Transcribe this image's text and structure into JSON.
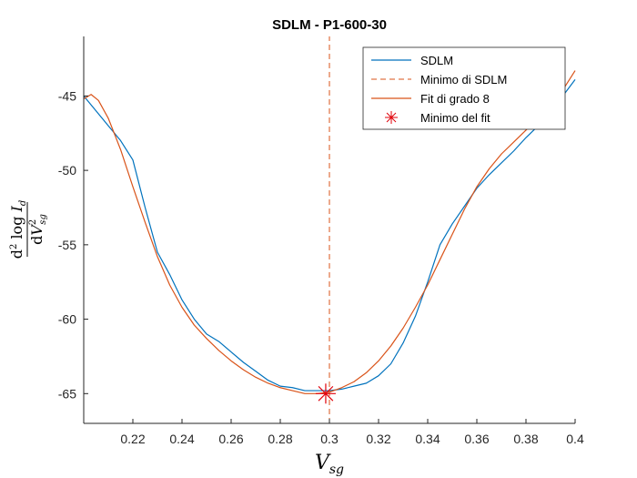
{
  "chart_data": {
    "type": "line",
    "title": "SDLM - P1-600-30",
    "xlabel": {
      "base": "V",
      "sub": "sg"
    },
    "ylabel": {
      "num_prefix": "d",
      "num_sup": "2",
      "num_mid": " log ",
      "num_var": "I",
      "num_sub": "d",
      "den_prefix": "d",
      "den_var": "V",
      "den_sup": "2",
      "den_sub": "sg"
    },
    "xlim": [
      0.2,
      0.4
    ],
    "ylim": [
      -67,
      -41
    ],
    "xticks": [
      0.22,
      0.24,
      0.26,
      0.28,
      0.3,
      0.32,
      0.34,
      0.36,
      0.38,
      0.4
    ],
    "xtick_labels": [
      "0.22",
      "0.24",
      "0.26",
      "0.28",
      "0.3",
      "0.32",
      "0.34",
      "0.36",
      "0.38",
      "0.4"
    ],
    "yticks": [
      -65,
      -60,
      -55,
      -50,
      -45
    ],
    "ytick_labels": [
      "-65",
      "-60",
      "-55",
      "-50",
      "-45"
    ],
    "grid": false,
    "legend_position": "top-right",
    "series": [
      {
        "name": "SDLM",
        "color": "#0072BD",
        "style": "solid",
        "x": [
          0.2,
          0.205,
          0.21,
          0.215,
          0.22,
          0.225,
          0.23,
          0.235,
          0.24,
          0.245,
          0.25,
          0.255,
          0.26,
          0.265,
          0.27,
          0.275,
          0.28,
          0.285,
          0.29,
          0.295,
          0.3,
          0.305,
          0.31,
          0.315,
          0.32,
          0.325,
          0.33,
          0.335,
          0.34,
          0.345,
          0.35,
          0.355,
          0.36,
          0.365,
          0.37,
          0.375,
          0.38,
          0.385,
          0.39,
          0.395,
          0.4
        ],
        "y": [
          -45.0,
          -46.0,
          -47.0,
          -48.0,
          -49.3,
          -52.5,
          -55.5,
          -57.0,
          -58.7,
          -60.0,
          -61.0,
          -61.5,
          -62.2,
          -62.9,
          -63.5,
          -64.1,
          -64.5,
          -64.6,
          -64.8,
          -64.8,
          -64.8,
          -64.7,
          -64.5,
          -64.3,
          -63.8,
          -63.0,
          -61.6,
          -59.8,
          -57.5,
          -55.0,
          -53.6,
          -52.4,
          -51.2,
          -50.3,
          -49.5,
          -48.7,
          -47.8,
          -47.0,
          -46.0,
          -45.0,
          -43.9
        ]
      },
      {
        "name": "Minimo di SDLM",
        "color": "#D95319",
        "style": "dashed",
        "x": [
          0.3,
          0.3
        ],
        "y": [
          -67,
          -41
        ]
      },
      {
        "name": "Fit di grado 8",
        "color": "#D95319",
        "style": "solid",
        "x": [
          0.2,
          0.203,
          0.206,
          0.21,
          0.215,
          0.22,
          0.225,
          0.23,
          0.235,
          0.24,
          0.245,
          0.25,
          0.255,
          0.26,
          0.265,
          0.27,
          0.275,
          0.28,
          0.285,
          0.29,
          0.295,
          0.3,
          0.305,
          0.31,
          0.315,
          0.32,
          0.325,
          0.33,
          0.335,
          0.34,
          0.345,
          0.35,
          0.355,
          0.36,
          0.365,
          0.37,
          0.375,
          0.38,
          0.385,
          0.39,
          0.395,
          0.4
        ],
        "y": [
          -45.2,
          -44.9,
          -45.3,
          -46.5,
          -48.6,
          -51.1,
          -53.5,
          -55.8,
          -57.7,
          -59.2,
          -60.4,
          -61.3,
          -62.1,
          -62.8,
          -63.4,
          -63.9,
          -64.3,
          -64.6,
          -64.8,
          -65.0,
          -65.0,
          -64.9,
          -64.6,
          -64.2,
          -63.6,
          -62.8,
          -61.8,
          -60.6,
          -59.2,
          -57.7,
          -56.0,
          -54.3,
          -52.6,
          -51.1,
          -49.9,
          -48.9,
          -48.1,
          -47.3,
          -46.5,
          -45.5,
          -44.6,
          -43.3
        ]
      },
      {
        "name": "Minimo del fit",
        "color": "#E0000A",
        "style": "marker-asterisk",
        "x": [
          0.2985
        ],
        "y": [
          -65.0
        ]
      }
    ]
  }
}
